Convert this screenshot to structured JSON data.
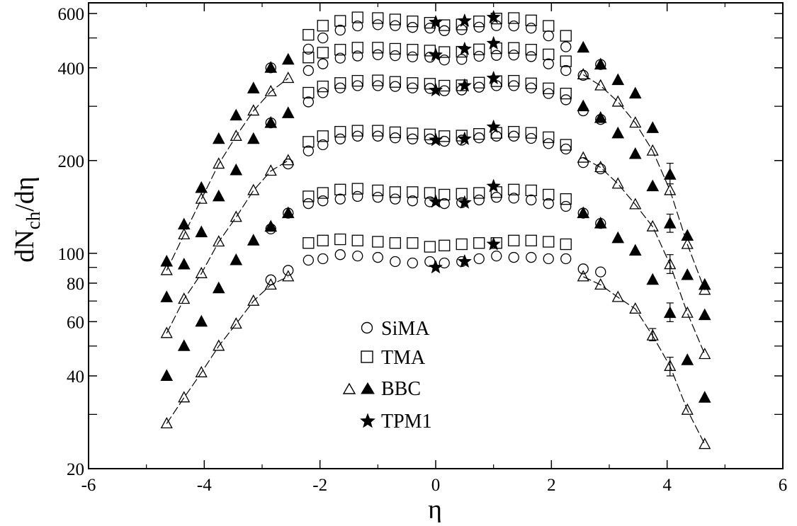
{
  "chart_data": {
    "type": "scatter",
    "xlabel": "η",
    "ylabel": {
      "main": "dN",
      "sub": "ch",
      "tail": "/dη"
    },
    "xlim": [
      -6,
      6
    ],
    "ylim": [
      20,
      650
    ],
    "yscale": "log",
    "grid": false,
    "legend_position": "center",
    "x_ticks": [
      -6,
      -4,
      -2,
      0,
      2,
      4,
      6
    ],
    "x_tick_labels": [
      "-6",
      "-4",
      "-2",
      "0",
      "2",
      "4",
      "6"
    ],
    "y_ticks": [
      20,
      40,
      60,
      80,
      100,
      200,
      400,
      600
    ],
    "y_tick_labels": [
      "20",
      "40",
      "60",
      "80",
      "100",
      "200",
      "400",
      "600"
    ],
    "y_minor_ticks": [
      30,
      50,
      70,
      90,
      300,
      500
    ],
    "legend": [
      {
        "label": "SiMA",
        "markers": [
          "circle-open"
        ]
      },
      {
        "label": "TMA",
        "markers": [
          "square-open"
        ]
      },
      {
        "label": "BBC",
        "markers": [
          "triangle-open",
          "triangle-filled"
        ]
      },
      {
        "label": "TPM1",
        "markers": [
          "star"
        ]
      }
    ],
    "series": [
      {
        "marker": "circle-open",
        "x": [
          -2.85,
          -2.55,
          -2.2,
          -1.95,
          -1.65,
          -1.35,
          -1.0,
          -0.7,
          -0.4,
          -0.1,
          0.15,
          0.45,
          0.75,
          1.05,
          1.35,
          1.65,
          1.95,
          2.25,
          2.55,
          2.85
        ],
        "y": [
          82,
          88,
          95,
          96,
          99,
          98,
          97,
          94,
          93,
          94,
          93,
          94,
          96,
          98,
          97,
          97,
          96,
          96,
          89,
          87
        ]
      },
      {
        "marker": "circle-open",
        "x": [
          -2.2,
          -1.95,
          -1.65,
          -1.35,
          -1.0,
          -0.7,
          -0.4,
          -0.1,
          0.15,
          0.45,
          0.75,
          1.05,
          1.35,
          1.65,
          1.95,
          2.25
        ],
        "y": [
          145,
          148,
          150,
          153,
          152,
          150,
          148,
          147,
          145,
          146,
          149,
          152,
          151,
          149,
          145,
          142
        ]
      },
      {
        "marker": "circle-open",
        "x": [
          -2.2,
          -1.95,
          -1.65,
          -1.35,
          -1.0,
          -0.7,
          -0.4,
          -0.1,
          0.15,
          0.45,
          0.75,
          1.05,
          1.35,
          1.65,
          1.95,
          2.25
        ],
        "y": [
          215,
          225,
          235,
          240,
          240,
          237,
          235,
          235,
          231,
          233,
          237,
          240,
          240,
          236,
          227,
          218
        ]
      },
      {
        "marker": "circle-open",
        "x": [
          -2.2,
          -1.95,
          -1.65,
          -1.35,
          -1.0,
          -0.7,
          -0.4,
          -0.1,
          0.15,
          0.45,
          0.75,
          1.05,
          1.35,
          1.65,
          1.95,
          2.25
        ],
        "y": [
          310,
          332,
          344,
          350,
          350,
          348,
          344,
          343,
          337,
          339,
          346,
          350,
          350,
          344,
          330,
          315
        ]
      },
      {
        "marker": "circle-open",
        "x": [
          -2.2,
          -1.95,
          -1.65,
          -1.35,
          -1.0,
          -0.7,
          -0.4,
          -0.1,
          0.15,
          0.45,
          0.75,
          1.05,
          1.35,
          1.65,
          1.95,
          2.25
        ],
        "y": [
          392,
          412,
          430,
          437,
          441,
          438,
          434,
          433,
          424,
          426,
          436,
          439,
          440,
          435,
          412,
          392
        ]
      },
      {
        "marker": "circle-open",
        "x": [
          -2.2,
          -1.95,
          -1.65,
          -1.35,
          -1.0,
          -0.7,
          -0.4,
          -0.1,
          0.15,
          0.45,
          0.75,
          1.05,
          1.35,
          1.65,
          1.95,
          2.25
        ],
        "y": [
          460,
          500,
          530,
          547,
          552,
          548,
          541,
          538,
          528,
          532,
          542,
          548,
          547,
          538,
          508,
          468
        ]
      },
      {
        "marker": "circle-open",
        "x": [
          -2.85,
          -2.85,
          -2.85,
          -2.55,
          -2.55,
          2.55,
          2.55,
          2.85,
          2.85
        ],
        "y": [
          120,
          265,
          400,
          135,
          195,
          135,
          197,
          125,
          188
        ]
      },
      {
        "marker": "circle-open",
        "x": [
          2.55,
          2.55,
          2.85,
          2.85
        ],
        "y": [
          290,
          378,
          272,
          410
        ]
      },
      {
        "marker": "square-open",
        "x": [
          -2.2,
          -1.95,
          -1.65,
          -1.35,
          -1.0,
          -0.7,
          -0.4,
          -0.1,
          0.15,
          0.45,
          0.75,
          1.05,
          1.35,
          1.65,
          1.95,
          2.25
        ],
        "y": [
          108,
          110,
          111,
          110,
          109,
          108,
          108,
          105,
          106,
          107,
          108,
          108,
          110,
          110,
          109,
          107
        ]
      },
      {
        "marker": "square-open",
        "x": [
          -2.2,
          -1.95,
          -1.65,
          -1.35,
          -1.0,
          -0.7,
          -0.4,
          -0.1,
          0.15,
          0.45,
          0.75,
          1.05,
          1.35,
          1.65,
          1.95,
          2.25
        ],
        "y": [
          153,
          157,
          161,
          162,
          160,
          158,
          158,
          157,
          155,
          156,
          157,
          158,
          161,
          160,
          155,
          150
        ]
      },
      {
        "marker": "square-open",
        "x": [
          -2.2,
          -1.95,
          -1.65,
          -1.35,
          -1.0,
          -0.7,
          -0.4,
          -0.1,
          0.15,
          0.45,
          0.75,
          1.05,
          1.35,
          1.65,
          1.95,
          2.25
        ],
        "y": [
          230,
          240,
          248,
          250,
          250,
          247,
          245,
          243,
          240,
          241,
          244,
          246,
          248,
          246,
          238,
          225
        ]
      },
      {
        "marker": "square-open",
        "x": [
          -2.2,
          -1.95,
          -1.65,
          -1.35,
          -1.0,
          -0.7,
          -0.4,
          -0.1,
          0.15,
          0.45,
          0.75,
          1.05,
          1.35,
          1.65,
          1.95,
          2.25
        ],
        "y": [
          332,
          348,
          357,
          363,
          364,
          360,
          357,
          355,
          350,
          351,
          358,
          362,
          363,
          356,
          343,
          330
        ]
      },
      {
        "marker": "square-open",
        "x": [
          -2.2,
          -1.95,
          -1.65,
          -1.35,
          -1.0,
          -0.7,
          -0.4,
          -0.1,
          0.15,
          0.45,
          0.75,
          1.05,
          1.35,
          1.65,
          1.95,
          2.25
        ],
        "y": [
          432,
          448,
          458,
          465,
          465,
          461,
          458,
          455,
          450,
          451,
          459,
          463,
          464,
          458,
          442,
          420
        ]
      },
      {
        "marker": "square-open",
        "x": [
          -2.2,
          -1.95,
          -1.65,
          -1.35,
          -1.0,
          -0.7,
          -0.4,
          -0.1,
          0.15,
          0.45,
          0.75,
          1.05,
          1.35,
          1.65,
          1.95,
          2.25
        ],
        "y": [
          512,
          548,
          568,
          583,
          580,
          574,
          566,
          560,
          550,
          553,
          566,
          578,
          580,
          570,
          547,
          508
        ]
      },
      {
        "marker": "triangle-open",
        "x": [
          -4.65,
          -4.35,
          -4.05,
          -3.75,
          -3.45,
          -3.15,
          -2.85,
          -2.55,
          2.55,
          2.85,
          3.15,
          3.45,
          3.75,
          4.05,
          4.35,
          4.65
        ],
        "y": [
          28,
          34,
          41,
          50,
          59,
          70,
          79,
          84,
          84,
          79,
          72,
          66,
          54,
          43,
          31,
          24
        ]
      },
      {
        "marker": "triangle-open",
        "x": [
          -4.65,
          -4.35,
          -4.05,
          -3.75,
          -3.45,
          -3.15,
          -2.85,
          -2.55,
          2.55,
          2.85,
          3.15,
          3.45,
          3.75,
          4.05,
          4.35,
          4.65
        ],
        "y": [
          55,
          71,
          86,
          109,
          131,
          160,
          185,
          200,
          204,
          190,
          168,
          144,
          122,
          92,
          64,
          47
        ]
      },
      {
        "marker": "triangle-open",
        "x": [
          -4.65,
          -4.35,
          -4.05,
          -3.75,
          -3.45,
          -3.15,
          -2.85,
          -2.55,
          2.55,
          2.85,
          3.15,
          3.45,
          3.75,
          4.05,
          4.35,
          4.65
        ],
        "y": [
          88,
          115,
          150,
          195,
          240,
          290,
          335,
          370,
          380,
          350,
          310,
          265,
          215,
          160,
          107,
          76
        ]
      },
      {
        "marker": "triangle-filled",
        "x": [
          -4.65,
          -4.35,
          -4.05,
          -3.75,
          -3.45,
          -3.15,
          -2.85,
          -2.55,
          2.55,
          2.85,
          3.15,
          3.45,
          3.75,
          4.05,
          4.35,
          4.65
        ],
        "y": [
          40,
          50,
          60,
          77,
          95,
          110,
          122,
          135,
          135,
          125,
          112,
          102,
          82,
          64,
          45,
          34
        ]
      },
      {
        "marker": "triangle-filled",
        "x": [
          -4.65,
          -4.35,
          -4.05,
          -3.75,
          -3.45,
          -3.15,
          -2.85,
          -2.55,
          2.55,
          2.85,
          3.15,
          3.45,
          3.75,
          4.05,
          4.35,
          4.65
        ],
        "y": [
          72,
          92,
          117,
          153,
          186,
          235,
          265,
          285,
          300,
          275,
          245,
          210,
          165,
          125,
          85,
          63
        ]
      },
      {
        "marker": "triangle-filled",
        "x": [
          -4.65,
          -4.35,
          -4.05,
          -3.75,
          -3.45,
          -3.15,
          -2.85,
          -2.55,
          2.55,
          2.85,
          3.15,
          3.45,
          3.75,
          4.05,
          4.35,
          4.65
        ],
        "y": [
          94,
          124,
          163,
          235,
          280,
          343,
          400,
          425,
          465,
          410,
          365,
          330,
          255,
          180,
          114,
          79
        ]
      },
      {
        "marker": "star",
        "x": [
          0,
          0.5,
          1.0
        ],
        "y": [
          90,
          94,
          107
        ]
      },
      {
        "marker": "star",
        "x": [
          0,
          0.5,
          1.0
        ],
        "y": [
          147,
          146,
          165
        ]
      },
      {
        "marker": "star",
        "x": [
          0,
          0.5,
          1.0
        ],
        "y": [
          233,
          235,
          257
        ]
      },
      {
        "marker": "star",
        "x": [
          0,
          0.5,
          1.0
        ],
        "y": [
          338,
          350,
          370
        ]
      },
      {
        "marker": "star",
        "x": [
          0,
          0.5,
          1.0
        ],
        "y": [
          440,
          460,
          480
        ]
      },
      {
        "marker": "star",
        "x": [
          0,
          0.5,
          1.0
        ],
        "y": [
          562,
          568,
          583
        ]
      }
    ],
    "fit_curves": [
      {
        "x": [
          -4.65,
          -4.35,
          -4.05,
          -3.75,
          -3.45,
          -3.15,
          -2.85,
          -2.55
        ],
        "y": [
          28,
          34,
          41,
          50,
          59,
          70,
          79,
          84
        ]
      },
      {
        "x": [
          2.55,
          2.85,
          3.15,
          3.45,
          3.75,
          4.05,
          4.35,
          4.65
        ],
        "y": [
          84,
          79,
          72,
          66,
          54,
          43,
          31,
          24
        ]
      },
      {
        "x": [
          -4.65,
          -4.35,
          -4.05,
          -3.75,
          -3.45,
          -3.15,
          -2.85,
          -2.55
        ],
        "y": [
          55,
          71,
          86,
          109,
          131,
          160,
          185,
          200
        ]
      },
      {
        "x": [
          2.55,
          2.85,
          3.15,
          3.45,
          3.75,
          4.05,
          4.35,
          4.65
        ],
        "y": [
          204,
          190,
          168,
          144,
          122,
          92,
          64,
          47
        ]
      },
      {
        "x": [
          -4.65,
          -4.35,
          -4.05,
          -3.75,
          -3.45,
          -3.15,
          -2.85,
          -2.55
        ],
        "y": [
          88,
          115,
          150,
          195,
          240,
          290,
          335,
          370
        ]
      },
      {
        "x": [
          2.55,
          2.85,
          3.15,
          3.45,
          3.75,
          4.05,
          4.35,
          4.65
        ],
        "y": [
          380,
          350,
          310,
          265,
          215,
          160,
          107,
          76
        ]
      }
    ],
    "error_bars": [
      {
        "x": 3.75,
        "y": 54,
        "low": 52,
        "high": 57
      },
      {
        "x": 4.05,
        "y": 43,
        "low": 40,
        "high": 46
      },
      {
        "x": 4.05,
        "y": 64,
        "low": 60,
        "high": 69
      },
      {
        "x": 4.05,
        "y": 92,
        "low": 86,
        "high": 99
      },
      {
        "x": 4.05,
        "y": 125,
        "low": 117,
        "high": 134
      },
      {
        "x": 4.05,
        "y": 180,
        "low": 168,
        "high": 196
      }
    ]
  }
}
